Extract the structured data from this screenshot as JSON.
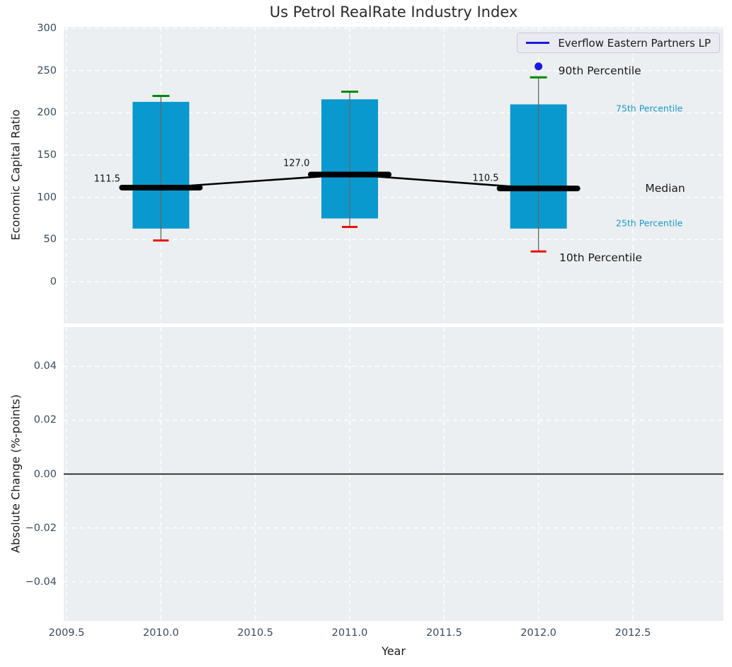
{
  "title": "Us Petrol RealRate Industry Index",
  "legend": {
    "label": "Everflow Eastern Partners LP",
    "line_color": "#1a1ae6"
  },
  "colors": {
    "box": "#0999ce",
    "whisker": "#666666",
    "cap_high": "#008a00",
    "cap_low": "#ee1111",
    "median": "#000000",
    "marker": "#1a1ae6",
    "grid": "#ffffff",
    "axes_bg": "#eceff1",
    "tick": "#3c4b5d",
    "text": "#1a1a1a",
    "percentile_blue": "#1b99cc",
    "zero_line": "#000000"
  },
  "chart_data": {
    "type": "box",
    "title": "Us Petrol RealRate Industry Index",
    "xlabel": "Year",
    "x": {
      "ticks": [
        2009.5,
        2010.0,
        2010.5,
        2011.0,
        2011.5,
        2012.0,
        2012.5
      ],
      "tick_labels": [
        "2009.5",
        "2010.0",
        "2010.5",
        "2011.0",
        "2011.5",
        "2012.0",
        "2012.5"
      ],
      "lim": [
        2009.485,
        2012.98
      ]
    },
    "subplots": [
      {
        "ylabel": "Economic Capital Ratio",
        "yticks": [
          0,
          50,
          100,
          150,
          200,
          250,
          300
        ],
        "ytick_labels": [
          "0",
          "50",
          "100",
          "150",
          "200",
          "250",
          "300"
        ],
        "ylim": [
          -49.4,
          301.7
        ],
        "grid": true,
        "boxes": [
          {
            "year": 2010,
            "median": 111.5,
            "q1": 63,
            "q3": 213,
            "whisker_low": 49,
            "whisker_high": 220
          },
          {
            "year": 2011,
            "median": 127.0,
            "q1": 75,
            "q3": 216,
            "whisker_low": 65,
            "whisker_high": 225
          },
          {
            "year": 2012,
            "median": 110.5,
            "q1": 63,
            "q3": 210,
            "whisker_low": 36,
            "whisker_high": 242,
            "marker_90th": 255
          }
        ],
        "median_line": {
          "x": [
            2010,
            2011,
            2012
          ],
          "y": [
            111.5,
            127.0,
            110.5
          ]
        },
        "annotations": [
          {
            "text": "111.5",
            "x": 2009.645,
            "y": 121.5,
            "size": 13,
            "color": "#111111"
          },
          {
            "text": "127.0",
            "x": 2010.648,
            "y": 140.0,
            "size": 13,
            "color": "#111111"
          },
          {
            "text": "110.5",
            "x": 2011.65,
            "y": 122.5,
            "size": 13,
            "color": "#111111"
          },
          {
            "text": "90th Percentile",
            "x": 2012.105,
            "y": 250.0,
            "size": 15.5,
            "color": "#1a1a1a"
          },
          {
            "text": "75th Percentile",
            "x": 2012.41,
            "y": 205.0,
            "size": 12.5,
            "color": "#1b99cc"
          },
          {
            "text": "Median",
            "x": 2012.565,
            "y": 110.5,
            "size": 15.5,
            "color": "#1a1a1a"
          },
          {
            "text": "25th Percentile",
            "x": 2012.41,
            "y": 70.0,
            "size": 12.5,
            "color": "#1b99cc"
          },
          {
            "text": "10th Percentile",
            "x": 2012.11,
            "y": 28.5,
            "size": 15.5,
            "color": "#1a1a1a"
          }
        ]
      },
      {
        "ylabel": "Absolute Change (%-points)",
        "yticks": [
          -0.04,
          -0.02,
          0.0,
          0.02,
          0.04
        ],
        "ytick_labels": [
          "−0.04",
          "−0.02",
          "0.00",
          "0.02",
          "0.04"
        ],
        "ylim": [
          -0.0546,
          0.0546
        ],
        "grid": true,
        "zero_line": 0.0
      }
    ],
    "legend_position": "upper right"
  }
}
